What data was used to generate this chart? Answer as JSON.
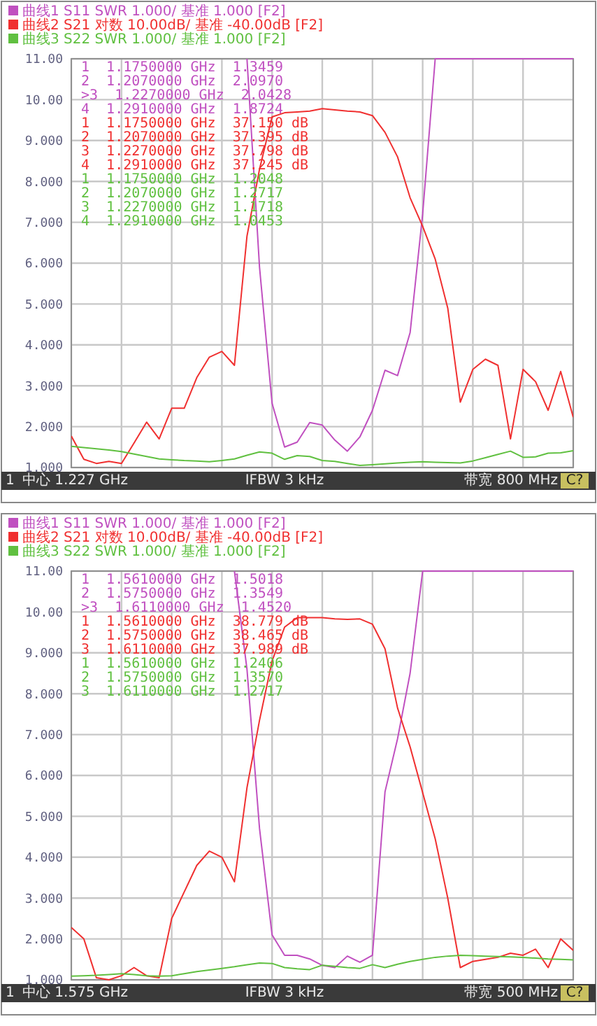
{
  "chart_data": [
    {
      "type": "line",
      "ylim": [
        1,
        11
      ],
      "categories": [
        null,
        null,
        null,
        null,
        null,
        null,
        null,
        null,
        null,
        null,
        null,
        null,
        null,
        null,
        null,
        null,
        null,
        null,
        null,
        null,
        null,
        null,
        null,
        null,
        null,
        null,
        null,
        null,
        null,
        null,
        null,
        null,
        null,
        null,
        null,
        null,
        null,
        null,
        null,
        null,
        null
      ],
      "yticks": [
        {
          "value": 1,
          "label": "1.000"
        },
        {
          "value": 2,
          "label": "2.000"
        },
        {
          "value": 3,
          "label": "3.000"
        },
        {
          "value": 4,
          "label": "4.000"
        },
        {
          "value": 5,
          "label": "5.000"
        },
        {
          "value": 6,
          "label": "6.000"
        },
        {
          "value": 7,
          "label": "7.000"
        },
        {
          "value": 8,
          "label": "8.000"
        },
        {
          "value": 9,
          "label": "9.000"
        },
        {
          "value": 10,
          "label": "10.00"
        },
        {
          "value": 11,
          "label": "11.00"
        }
      ],
      "tick_labels": "y",
      "grid": true,
      "legend": "top",
      "series": [
        {
          "name": "曲线1 S11 SWR 1.000/ 基准 1.000 [F2]",
          "color": "#c050c0",
          "values": [
            null,
            null,
            null,
            null,
            null,
            null,
            null,
            null,
            null,
            null,
            null,
            null,
            null,
            null,
            11,
            5.9,
            2.57,
            1.5,
            1.62,
            2.1,
            2.04,
            1.67,
            1.4,
            1.75,
            2.4,
            3.38,
            3.25,
            4.3,
            7.2,
            11,
            11,
            11,
            11,
            11,
            11,
            11,
            11,
            11,
            11,
            11,
            11
          ]
        },
        {
          "name": "曲线2 S21 对数 10.00dB/ 基准 -40.00dB [F2]",
          "color": "#f03030",
          "values": [
            1.77,
            1.2,
            1.1,
            1.15,
            1.1,
            1.6,
            2.11,
            1.7,
            2.45,
            2.45,
            3.2,
            3.7,
            3.84,
            3.5,
            6.66,
            8.3,
            9.58,
            9.68,
            9.7,
            9.72,
            9.78,
            9.75,
            9.72,
            9.7,
            9.61,
            9.2,
            8.6,
            7.6,
            6.9,
            6.1,
            4.9,
            2.6,
            3.4,
            3.65,
            3.5,
            1.7,
            3.4,
            3.1,
            2.4,
            3.35,
            2.23
          ]
        },
        {
          "name": "曲线3 S22 SWR 1.000/ 基准 1.000 [F2]",
          "color": "#60c040",
          "values": [
            1.52,
            1.49,
            1.46,
            1.43,
            1.39,
            1.33,
            1.27,
            1.21,
            1.19,
            1.17,
            1.16,
            1.14,
            1.17,
            1.21,
            1.3,
            1.38,
            1.35,
            1.2,
            1.29,
            1.27,
            1.17,
            1.15,
            1.1,
            1.05,
            1.07,
            1.09,
            1.11,
            1.13,
            1.14,
            1.13,
            1.12,
            1.11,
            1.16,
            1.24,
            1.32,
            1.4,
            1.25,
            1.26,
            1.35,
            1.36,
            1.41
          ]
        }
      ],
      "annotations": [
        "1  1.1750000 GHz  1.3459",
        "2  1.2070000 GHz  2.0970",
        ">3  1.2270000 GHz  2.0428",
        "4  1.2910000 GHz  1.8724",
        "1  1.1750000 GHz  37.150 dB",
        "2  1.2070000 GHz  37.395 dB",
        "3  1.2270000 GHz  37.798 dB",
        "4  1.2910000 GHz  37.245 dB",
        "1  1.1750000 GHz  1.2048",
        "2  1.2070000 GHz  1.2717",
        "3  1.2270000 GHz  1.1718",
        "4  1.2910000 GHz  1.0453",
        "1",
        "中心 1.227 GHz",
        "IFBW 3 kHz",
        "带宽 800 MHz",
        "C?"
      ]
    },
    {
      "type": "line",
      "ylim": [
        1,
        11
      ],
      "categories": [
        null,
        null,
        null,
        null,
        null,
        null,
        null,
        null,
        null,
        null,
        null,
        null,
        null,
        null,
        null,
        null,
        null,
        null,
        null,
        null,
        null,
        null,
        null,
        null,
        null,
        null,
        null,
        null,
        null,
        null,
        null,
        null,
        null,
        null,
        null,
        null,
        null,
        null,
        null,
        null,
        null
      ],
      "yticks": [
        {
          "value": 1,
          "label": "1.000"
        },
        {
          "value": 2,
          "label": "2.000"
        },
        {
          "value": 3,
          "label": "3.000"
        },
        {
          "value": 4,
          "label": "4.000"
        },
        {
          "value": 5,
          "label": "5.000"
        },
        {
          "value": 6,
          "label": "6.000"
        },
        {
          "value": 7,
          "label": "7.000"
        },
        {
          "value": 8,
          "label": "8.000"
        },
        {
          "value": 9,
          "label": "9.000"
        },
        {
          "value": 10,
          "label": "10.00"
        },
        {
          "value": 11,
          "label": "11.00"
        }
      ],
      "tick_labels": "y",
      "grid": true,
      "legend": "top",
      "series": [
        {
          "name": "曲线1 S11 SWR 1.000/ 基准 1.000 [F2]",
          "color": "#c050c0",
          "values": [
            null,
            null,
            null,
            null,
            null,
            null,
            null,
            null,
            null,
            null,
            null,
            null,
            null,
            11,
            8.6,
            4.7,
            2.1,
            1.6,
            1.6,
            1.51,
            1.355,
            1.3,
            1.58,
            1.43,
            1.6,
            5.6,
            6.9,
            8.5,
            11,
            11,
            11,
            11,
            11,
            11,
            11,
            11,
            11,
            11,
            11,
            11,
            11
          ]
        },
        {
          "name": "曲线2 S21 对数 10.00dB/ 基准 -40.00dB [F2]",
          "color": "#f03030",
          "values": [
            2.28,
            2.0,
            1.05,
            1.0,
            1.1,
            1.3,
            1.1,
            1.05,
            2.5,
            3.15,
            3.8,
            4.15,
            4.0,
            3.4,
            5.7,
            7.35,
            8.8,
            9.63,
            9.86,
            9.86,
            9.86,
            9.83,
            9.82,
            9.83,
            9.7,
            9.1,
            7.65,
            6.7,
            5.58,
            4.45,
            3.0,
            1.3,
            1.45,
            1.5,
            1.55,
            1.65,
            1.6,
            1.75,
            1.3,
            2.0,
            1.72
          ]
        },
        {
          "name": "曲线3 S22 SWR 1.000/ 基准 1.000 [F2]",
          "color": "#60c040",
          "values": [
            1.09,
            1.1,
            1.11,
            1.13,
            1.15,
            1.13,
            1.1,
            1.09,
            1.1,
            1.15,
            1.2,
            1.24,
            1.28,
            1.32,
            1.37,
            1.41,
            1.4,
            1.3,
            1.27,
            1.25,
            1.357,
            1.33,
            1.3,
            1.28,
            1.37,
            1.3,
            1.38,
            1.45,
            1.5,
            1.55,
            1.58,
            1.6,
            1.59,
            1.58,
            1.57,
            1.56,
            1.55,
            1.53,
            1.51,
            1.5,
            1.49
          ]
        }
      ],
      "annotations": [
        "1  1.5610000 GHz  1.5018",
        "2  1.5750000 GHz  1.3549",
        ">3  1.6110000 GHz  1.4520",
        "1  1.5610000 GHz  38.779 dB",
        "2  1.5750000 GHz  38.465 dB",
        "3  1.6110000 GHz  37.989 dB",
        "1  1.5610000 GHz  1.2406",
        "2  1.5750000 GHz  1.3570",
        "3  1.6110000 GHz  1.2717",
        "1",
        "中心 1.575 GHz",
        "IFBW 3 kHz",
        "带宽 500 MHz",
        "C?"
      ]
    }
  ]
}
